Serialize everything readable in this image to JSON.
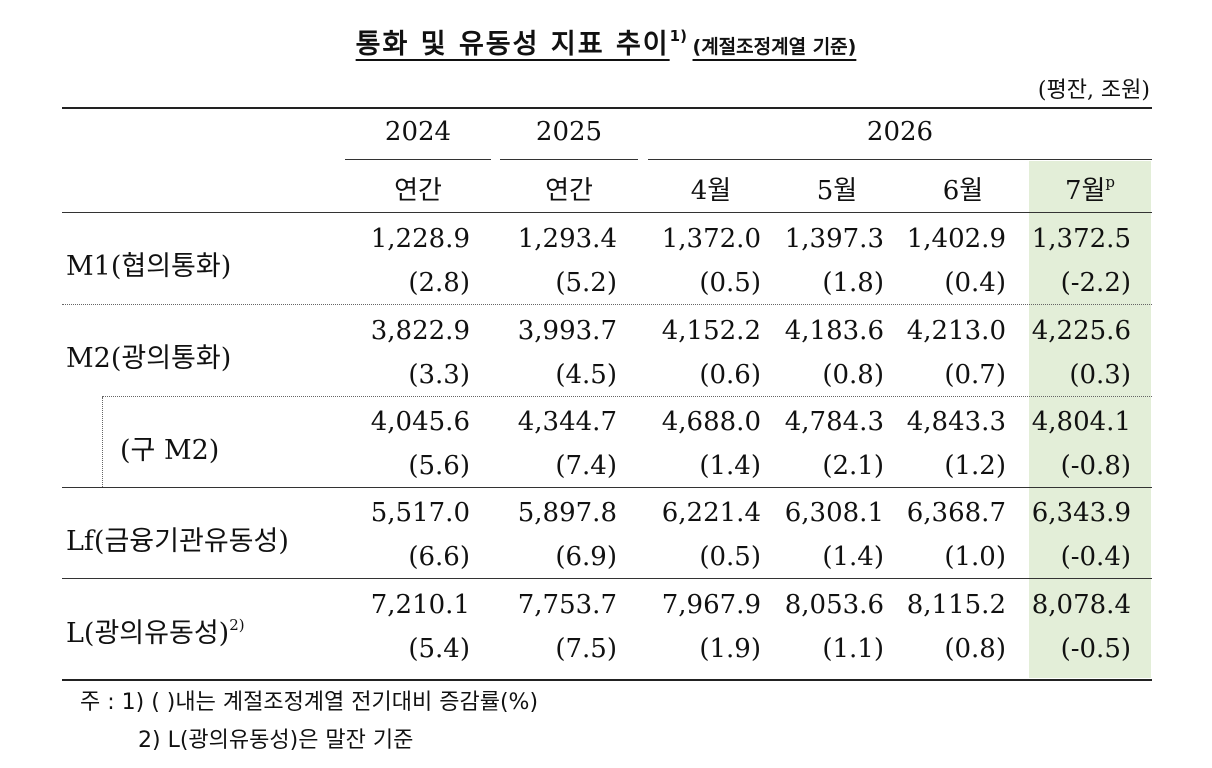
{
  "title": {
    "main": "통화 및 유동성 지표 추이",
    "sup": "1)",
    "sub": "(계절조정계열 기준)"
  },
  "unit": "(평잔, 조원)",
  "header": {
    "years": [
      "2024",
      "2025",
      "2026"
    ],
    "periods": [
      "연간",
      "연간",
      "4월",
      "5월",
      "6월",
      "7월"
    ],
    "prelim_mark": "p"
  },
  "rows": [
    {
      "label": "M1(협의통화)",
      "sup": "",
      "values": [
        "1,228.9",
        "1,293.4",
        "1,372.0",
        "1,397.3",
        "1,402.9",
        "1,372.5"
      ],
      "changes": [
        "(2.8)",
        "(5.2)",
        "(0.5)",
        "(1.8)",
        "(0.4)",
        "(-2.2)"
      ]
    },
    {
      "label": "M2(광의통화)",
      "sup": "",
      "values": [
        "3,822.9",
        "3,993.7",
        "4,152.2",
        "4,183.6",
        "4,213.0",
        "4,225.6"
      ],
      "changes": [
        "(3.3)",
        "(4.5)",
        "(0.6)",
        "(0.8)",
        "(0.7)",
        "(0.3)"
      ]
    },
    {
      "label": "(구  M2)",
      "sup": "",
      "values": [
        "4,045.6",
        "4,344.7",
        "4,688.0",
        "4,784.3",
        "4,843.3",
        "4,804.1"
      ],
      "changes": [
        "(5.6)",
        "(7.4)",
        "(1.4)",
        "(2.1)",
        "(1.2)",
        "(-0.8)"
      ]
    },
    {
      "label": "Lf(금융기관유동성)",
      "sup": "",
      "values": [
        "5,517.0",
        "5,897.8",
        "6,221.4",
        "6,308.1",
        "6,368.7",
        "6,343.9"
      ],
      "changes": [
        "(6.6)",
        "(6.9)",
        "(0.5)",
        "(1.4)",
        "(1.0)",
        "(-0.4)"
      ]
    },
    {
      "label": "L(광의유동성)",
      "sup": "2)",
      "values": [
        "7,210.1",
        "7,753.7",
        "7,967.9",
        "8,053.6",
        "8,115.2",
        "8,078.4"
      ],
      "changes": [
        "(5.4)",
        "(7.5)",
        "(1.9)",
        "(1.1)",
        "(0.8)",
        "(-0.5)"
      ]
    }
  ],
  "notes": [
    "주 : 1) (     )내는 계절조정계열 전기대비 증감률(%)",
    "2) L(광의유동성)은 말잔 기준"
  ],
  "colors": {
    "highlight_column": "#e3eed8"
  }
}
